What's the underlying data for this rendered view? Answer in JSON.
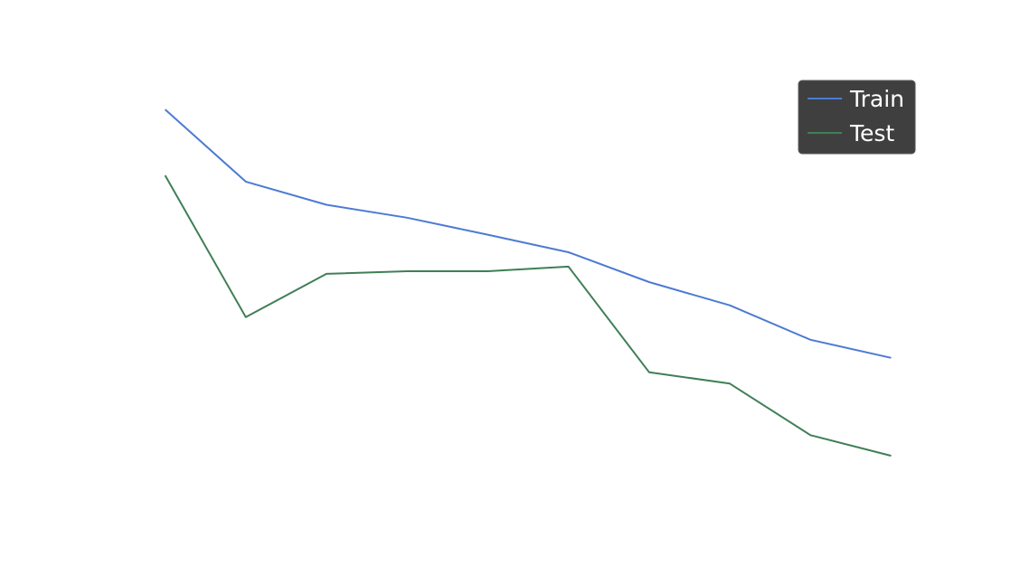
{
  "chart_data": {
    "type": "line",
    "title": "",
    "xlabel": "",
    "ylabel": "",
    "x": [
      1,
      2,
      3,
      4,
      5,
      6,
      7,
      8,
      9,
      10
    ],
    "series": [
      {
        "name": "Train",
        "color": "#4c7bd3",
        "values": [
          0.927,
          0.787,
          0.742,
          0.717,
          0.684,
          0.65,
          0.592,
          0.547,
          0.48,
          0.445
        ]
      },
      {
        "name": "Test",
        "color": "#3f7f56",
        "values": [
          0.799,
          0.524,
          0.608,
          0.613,
          0.613,
          0.622,
          0.417,
          0.395,
          0.295,
          0.255
        ]
      }
    ],
    "xlim": [
      0.5,
      10.5
    ],
    "ylim": [
      0.12,
      1.05
    ],
    "grid": false,
    "axes_visible": false,
    "legend": {
      "position": "top-right",
      "background": "#3f3f3f"
    }
  }
}
